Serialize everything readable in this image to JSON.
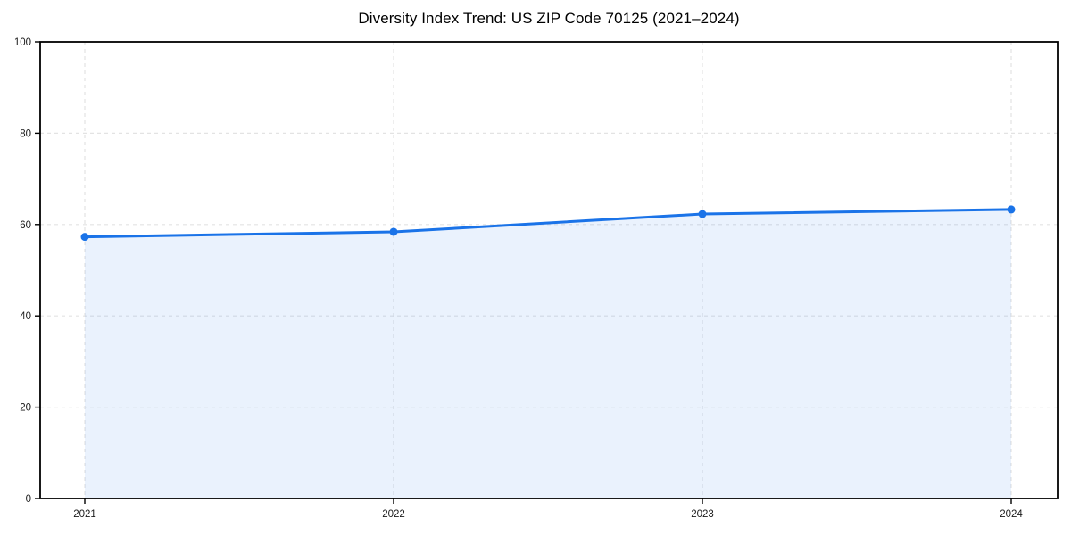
{
  "chart_data": {
    "type": "line",
    "title": "Diversity Index Trend: US ZIP Code 70125 (2021–2024)",
    "categories": [
      "2021",
      "2022",
      "2023",
      "2024"
    ],
    "series": [
      {
        "name": "Diversity Index",
        "values": [
          57.3,
          58.4,
          62.3,
          63.3
        ]
      }
    ],
    "xlabel": "",
    "ylabel": "",
    "ylim": [
      0,
      100
    ],
    "yticks": [
      0,
      20,
      40,
      60,
      80,
      100
    ],
    "grid": "dashed-both-axes",
    "legend_position": "none",
    "area_fill": true,
    "marker": "circle",
    "colors": {
      "line": "#1a73e8",
      "marker": "#1a73e8",
      "fill": "#1a73e8",
      "fill_opacity": "0.09",
      "grid": "#e3e3e3",
      "spine": "#000000",
      "tick_label": "#1a1a1a",
      "title": "#000000"
    }
  }
}
